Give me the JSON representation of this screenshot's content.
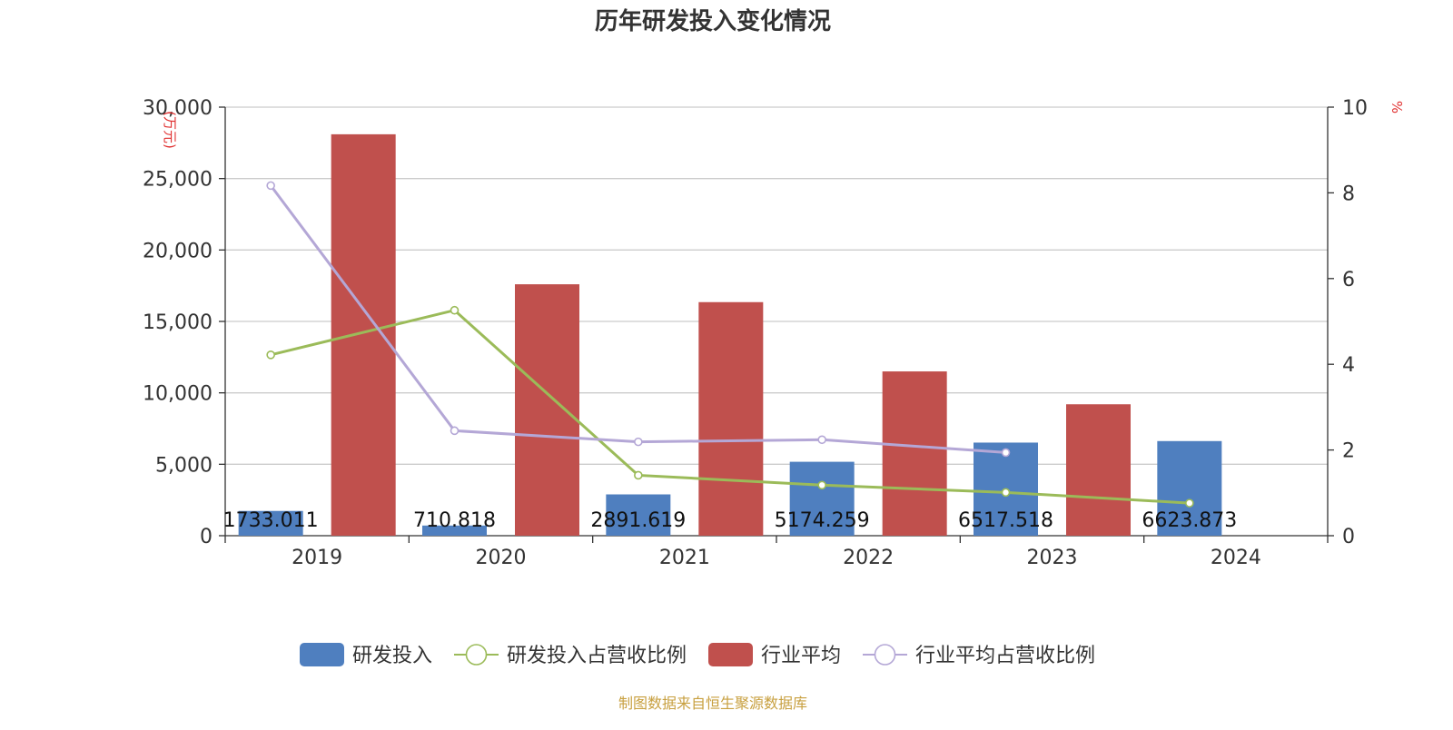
{
  "chart_data": {
    "type": "bar",
    "title": "历年研发投入变化情况",
    "categories": [
      "2019",
      "2020",
      "2021",
      "2022",
      "2023",
      "2024"
    ],
    "y_left": {
      "unit_label": "(万元)",
      "range": [
        0,
        30000
      ],
      "ticks": [
        "0",
        "5,000",
        "10,000",
        "15,000",
        "20,000",
        "25,000",
        "30,000"
      ],
      "tick_values": [
        0,
        5000,
        10000,
        15000,
        20000,
        25000,
        30000
      ]
    },
    "y_right": {
      "unit_label": "%",
      "range": [
        0,
        10
      ],
      "ticks": [
        "0",
        "2",
        "4",
        "6",
        "8",
        "10"
      ],
      "tick_values": [
        0,
        2,
        4,
        6,
        8,
        10
      ]
    },
    "series": [
      {
        "name": "研发投入",
        "type": "bar",
        "axis": "left",
        "color": "#4f7fbf",
        "values": [
          1733.011,
          710.818,
          2891.619,
          5174.259,
          6517.518,
          6623.873
        ],
        "labels": [
          "1733.011",
          "710.818",
          "2891.619",
          "5174.259",
          "6517.518",
          "6623.873"
        ]
      },
      {
        "name": "研发投入占营收比例",
        "type": "line",
        "axis": "right",
        "color": "#9bbb59",
        "values": [
          4.22,
          5.26,
          1.41,
          1.18,
          1.01,
          0.76
        ]
      },
      {
        "name": "行业平均",
        "type": "bar",
        "axis": "left",
        "color": "#c0504d",
        "values": [
          28100,
          17600,
          16350,
          11500,
          9200,
          null
        ]
      },
      {
        "name": "行业平均占营收比例",
        "type": "line",
        "axis": "right",
        "color": "#b4a7d6",
        "values": [
          8.17,
          2.45,
          2.19,
          2.24,
          1.94,
          null
        ]
      }
    ],
    "grid": true,
    "legend_position": "bottom"
  },
  "source_text": "制图数据来自恒生聚源数据库",
  "colors": {
    "axis": "#333333",
    "grid": "#cccccc",
    "unit_label": "#e03030",
    "source": "#c8a040"
  }
}
